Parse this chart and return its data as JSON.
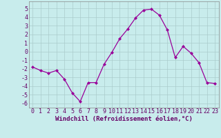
{
  "x": [
    0,
    1,
    2,
    3,
    4,
    5,
    6,
    7,
    8,
    9,
    10,
    11,
    12,
    13,
    14,
    15,
    16,
    17,
    18,
    19,
    20,
    21,
    22,
    23
  ],
  "y": [
    -1.8,
    -2.2,
    -2.5,
    -2.2,
    -3.2,
    -4.8,
    -5.8,
    -3.6,
    -3.6,
    -1.5,
    -0.1,
    1.5,
    2.6,
    3.9,
    4.8,
    4.9,
    4.2,
    2.5,
    -0.7,
    0.6,
    -0.2,
    -1.3,
    -3.6,
    -3.7
  ],
  "line_color": "#990099",
  "marker": "D",
  "markersize": 2.0,
  "linewidth": 0.9,
  "xlabel": "Windchill (Refroidissement éolien,°C)",
  "xlim": [
    -0.5,
    23.5
  ],
  "ylim": [
    -6.5,
    5.8
  ],
  "yticks": [
    -6,
    -5,
    -4,
    -3,
    -2,
    -1,
    0,
    1,
    2,
    3,
    4,
    5
  ],
  "xticks": [
    0,
    1,
    2,
    3,
    4,
    5,
    6,
    7,
    8,
    9,
    10,
    11,
    12,
    13,
    14,
    15,
    16,
    17,
    18,
    19,
    20,
    21,
    22,
    23
  ],
  "bg_color": "#c8ecec",
  "grid_color": "#aacccc",
  "tick_label_color": "#660066",
  "xlabel_color": "#660066",
  "xlabel_fontsize": 6.5,
  "tick_fontsize": 6.0
}
